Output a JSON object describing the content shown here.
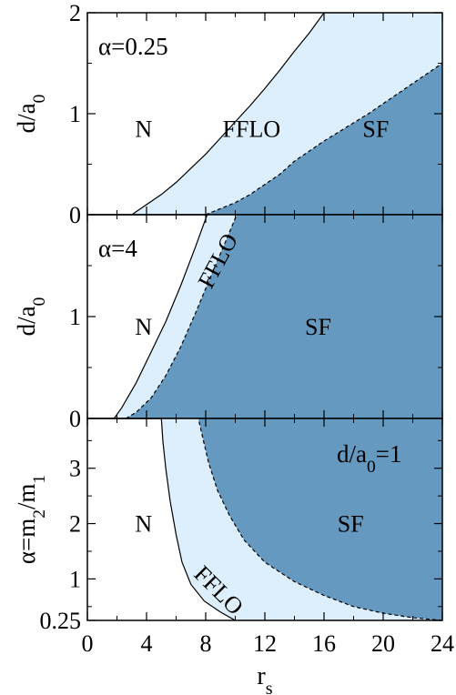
{
  "colors": {
    "ffloFill": "#ddeefc",
    "sfFill": "#6699bf",
    "axis": "#000000"
  },
  "chart_data": {
    "type": "area",
    "xlabel": "r",
    "xlabel_sub": "s",
    "xlim": [
      0,
      24
    ],
    "xticks": [
      "0",
      "4",
      "8",
      "12",
      "16",
      "20",
      "24"
    ],
    "xtick_values": [
      0,
      4,
      8,
      12,
      16,
      20,
      24
    ],
    "panels": [
      {
        "annotation": "α=0.25",
        "ylabel": "d/a",
        "ylabel_sub": "0",
        "ylim": [
          0,
          2
        ],
        "yticks": [
          "0",
          "1",
          "2"
        ],
        "ytick_values": [
          0,
          1,
          2
        ],
        "regions": [
          {
            "label": "N",
            "x": 3.8,
            "y": 0.85
          },
          {
            "label": "FFLO",
            "x": 11.1,
            "y": 0.85
          },
          {
            "label": "SF",
            "x": 19.5,
            "y": 0.85
          }
        ],
        "series": [
          {
            "role": "N-FFLO boundary",
            "x": [
              3,
              4,
              5,
              6,
              7,
              8,
              9,
              10,
              11,
              12,
              13,
              14,
              15,
              16
            ],
            "y": [
              0,
              0.1,
              0.2,
              0.32,
              0.46,
              0.6,
              0.76,
              0.92,
              1.08,
              1.25,
              1.43,
              1.62,
              1.8,
              2.0
            ]
          },
          {
            "role": "FFLO-SF boundary",
            "x": [
              8,
              9,
              10,
              11,
              12,
              13,
              14,
              15,
              16,
              17,
              18,
              19,
              20,
              21,
              22,
              23,
              24
            ],
            "y": [
              0,
              0.06,
              0.12,
              0.2,
              0.3,
              0.4,
              0.53,
              0.63,
              0.73,
              0.82,
              0.91,
              1.0,
              1.1,
              1.2,
              1.3,
              1.4,
              1.5
            ]
          }
        ]
      },
      {
        "annotation": "α=4",
        "ylabel": "d/a",
        "ylabel_sub": "0",
        "ylim": [
          0,
          2
        ],
        "yticks": [
          "0",
          "1"
        ],
        "ytick_values": [
          0,
          1
        ],
        "regions": [
          {
            "label": "N",
            "x": 3.8,
            "y": 0.9
          },
          {
            "label": "FFLO",
            "x": 8.8,
            "y": 1.55,
            "rotate": -62
          },
          {
            "label": "SF",
            "x": 15.6,
            "y": 0.9
          }
        ],
        "series": [
          {
            "role": "N-FFLO boundary",
            "x": [
              1.8,
              2.3,
              3.3,
              4.3,
              5.3,
              6.3,
              7.3,
              8.1
            ],
            "y": [
              0,
              0.1,
              0.35,
              0.65,
              0.95,
              1.3,
              1.68,
              2.0
            ]
          },
          {
            "role": "FFLO-SF boundary",
            "x": [
              2.6,
              3.3,
              4.3,
              5.3,
              6.3,
              7.3,
              8.3,
              9.3,
              10.1
            ],
            "y": [
              0,
              0.06,
              0.2,
              0.42,
              0.7,
              1.03,
              1.38,
              1.72,
              2.0
            ]
          }
        ]
      },
      {
        "annotation": "d/a",
        "annotation_sub": "0",
        "annotation_tail": "=1",
        "ylabel": "α=m",
        "ylabel_sub1": "2",
        "ylabel_mid": "/m",
        "ylabel_sub2": "1",
        "ylim": [
          0.25,
          3.9
        ],
        "yticks": [
          "0.25",
          "1",
          "2",
          "3"
        ],
        "ytick_values": [
          0.25,
          1,
          2,
          3
        ],
        "regions": [
          {
            "label": "N",
            "x": 3.8,
            "y": 2.0
          },
          {
            "label": "SF",
            "x": 17.8,
            "y": 2.0
          },
          {
            "label": "FFLO",
            "x": 8.9,
            "y": 0.8,
            "rotate": 45
          }
        ],
        "series": [
          {
            "role": "N-FFLO boundary",
            "x": [
              10.0,
              9.0,
              7.9,
              7.0,
              6.4,
              6.0,
              5.6,
              5.3,
              5.1,
              5.0
            ],
            "y": [
              0.25,
              0.4,
              0.6,
              0.9,
              1.3,
              1.8,
              2.4,
              3.0,
              3.5,
              3.9
            ]
          },
          {
            "role": "FFLO-SF boundary",
            "x": [
              24,
              22,
              20,
              18,
              16,
              14,
              12,
              10.6,
              9.6,
              8.8,
              8.2,
              7.8,
              7.5
            ],
            "y": [
              0.25,
              0.3,
              0.38,
              0.5,
              0.7,
              0.95,
              1.3,
              1.7,
              2.15,
              2.6,
              3.1,
              3.55,
              3.9
            ]
          }
        ]
      }
    ]
  }
}
